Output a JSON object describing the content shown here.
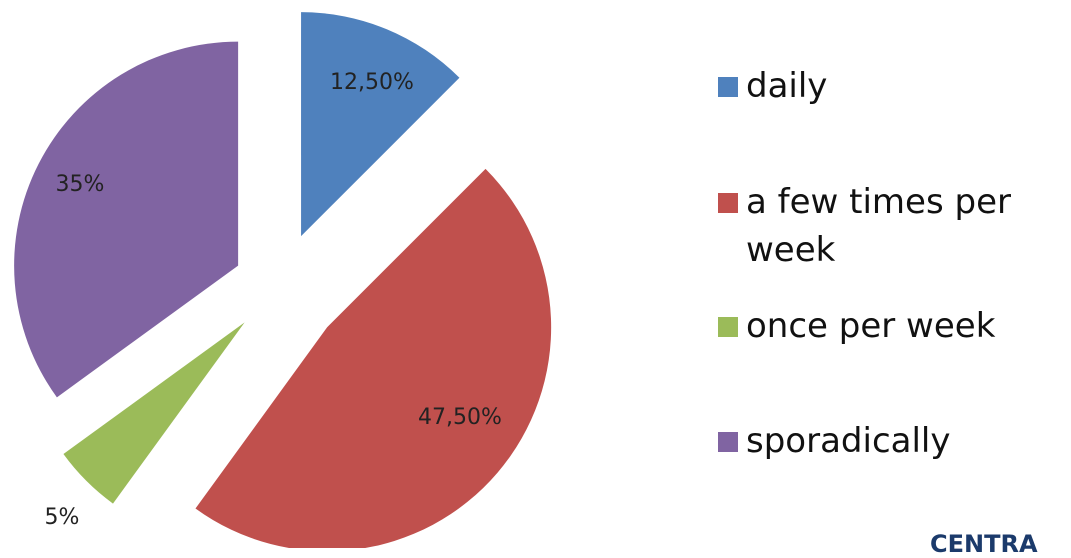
{
  "chart_data": {
    "type": "pie",
    "categories": [
      "daily",
      "a few times per week",
      "once per week",
      "sporadically"
    ],
    "values": [
      12.5,
      47.5,
      5,
      35
    ],
    "value_labels": [
      "12,50%",
      "47,50%",
      "5%",
      "35%"
    ],
    "colors": [
      "#4f81bd",
      "#c0504d",
      "#9bbb59",
      "#8064a2"
    ],
    "legend": "right"
  },
  "logo_text": "CENTRA"
}
